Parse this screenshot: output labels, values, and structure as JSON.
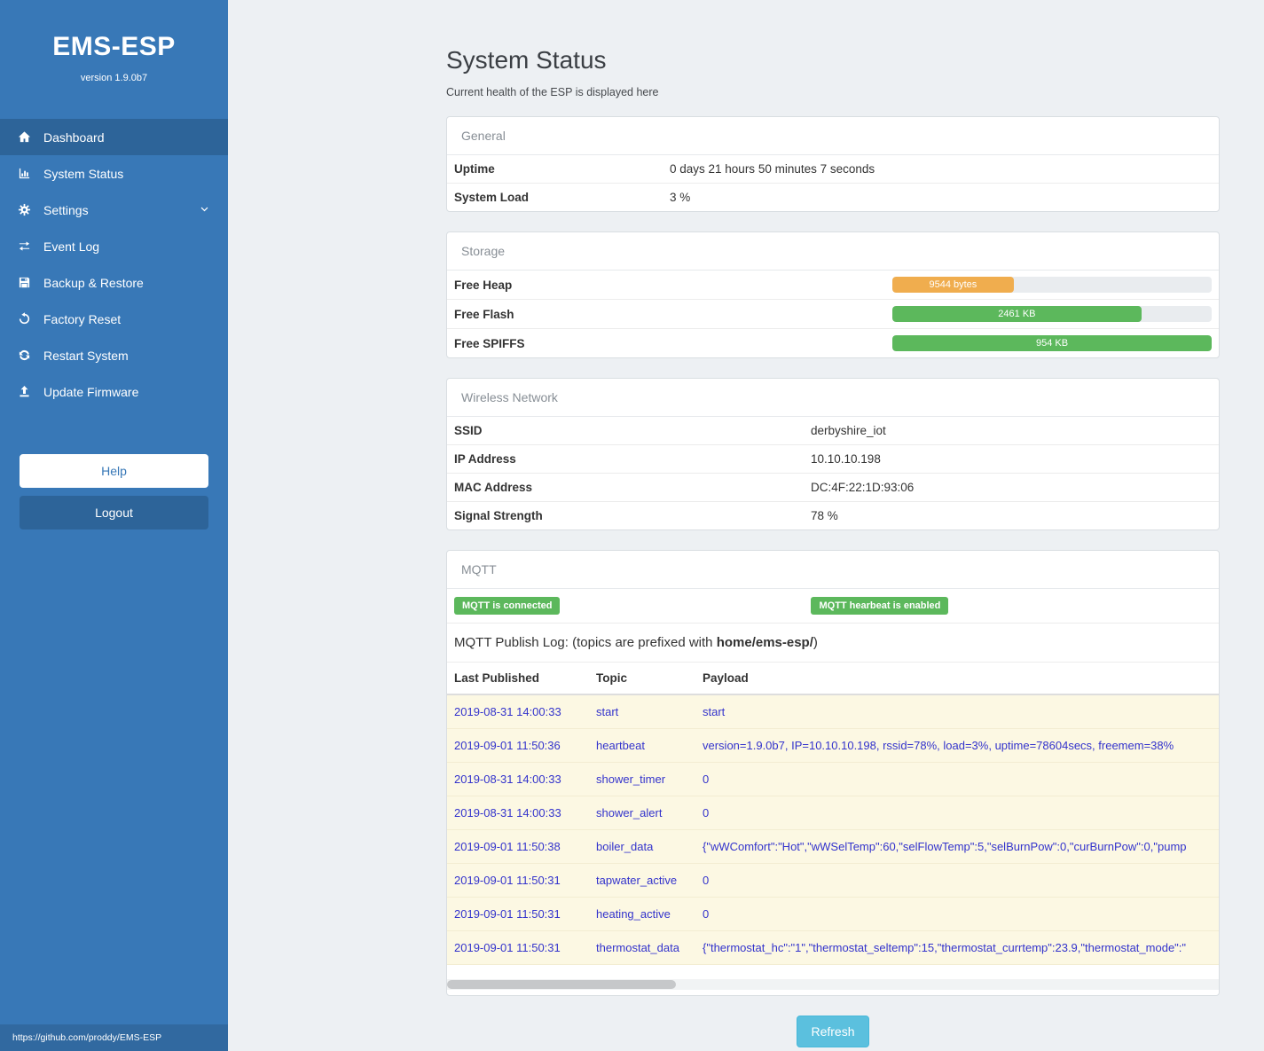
{
  "colors": {
    "sidebar": "#3878b7",
    "sidebar-active": "#2d6499",
    "success": "#5cb85c",
    "warning": "#f0ad4e",
    "info": "#5bc0de",
    "link": "#3333cc",
    "bg": "#edf0f3"
  },
  "sidebar": {
    "app_title": "EMS-ESP",
    "version": "version 1.9.0b7",
    "items": [
      {
        "label": "Dashboard",
        "icon": "home-icon",
        "active": true
      },
      {
        "label": "System Status",
        "icon": "bar-chart-icon"
      },
      {
        "label": "Settings",
        "icon": "gear-icon",
        "chevron": true
      },
      {
        "label": "Event Log",
        "icon": "exchange-icon"
      },
      {
        "label": "Backup & Restore",
        "icon": "save-icon"
      },
      {
        "label": "Factory Reset",
        "icon": "rotate-icon"
      },
      {
        "label": "Restart System",
        "icon": "refresh-icon"
      },
      {
        "label": "Update Firmware",
        "icon": "upload-icon"
      }
    ],
    "help_label": "Help",
    "logout_label": "Logout",
    "footer_link": "https://github.com/proddy/EMS-ESP"
  },
  "main": {
    "title": "System Status",
    "subtitle": "Current health of the ESP is displayed here",
    "general": {
      "header": "General",
      "rows": [
        {
          "label": "Uptime",
          "value": "0 days 21 hours 50 minutes 7 seconds"
        },
        {
          "label": "System Load",
          "value": "3 %"
        }
      ]
    },
    "storage": {
      "header": "Storage",
      "rows": [
        {
          "label": "Free Heap",
          "bar_label": "9544 bytes",
          "percent": 38,
          "color": "#f0ad4e"
        },
        {
          "label": "Free Flash",
          "bar_label": "2461 KB",
          "percent": 78,
          "color": "#5cb85c"
        },
        {
          "label": "Free SPIFFS",
          "bar_label": "954 KB",
          "percent": 100,
          "color": "#5cb85c"
        }
      ]
    },
    "wireless": {
      "header": "Wireless Network",
      "rows": [
        {
          "label": "SSID",
          "value": "derbyshire_iot"
        },
        {
          "label": "IP Address",
          "value": "10.10.10.198"
        },
        {
          "label": "MAC Address",
          "value": "DC:4F:22:1D:93:06"
        },
        {
          "label": "Signal Strength",
          "value": "78 %"
        }
      ]
    },
    "mqtt": {
      "header": "MQTT",
      "badges": [
        "MQTT is connected",
        "MQTT hearbeat is enabled"
      ],
      "log_title_prefix": "MQTT Publish Log: (topics are prefixed with ",
      "log_title_bold": "home/ems-esp/",
      "log_title_suffix": ")",
      "table": {
        "headers": [
          "Last Published",
          "Topic",
          "Payload"
        ],
        "rows": [
          [
            "2019-08-31 14:00:33",
            "start",
            "start"
          ],
          [
            "2019-09-01 11:50:36",
            "heartbeat",
            "version=1.9.0b7, IP=10.10.10.198, rssid=78%, load=3%, uptime=78604secs, freemem=38%"
          ],
          [
            "2019-08-31 14:00:33",
            "shower_timer",
            "0"
          ],
          [
            "2019-08-31 14:00:33",
            "shower_alert",
            "0"
          ],
          [
            "2019-09-01 11:50:38",
            "boiler_data",
            "{\"wWComfort\":\"Hot\",\"wWSelTemp\":60,\"selFlowTemp\":5,\"selBurnPow\":0,\"curBurnPow\":0,\"pump"
          ],
          [
            "2019-09-01 11:50:31",
            "tapwater_active",
            "0"
          ],
          [
            "2019-09-01 11:50:31",
            "heating_active",
            "0"
          ],
          [
            "2019-09-01 11:50:31",
            "thermostat_data",
            "{\"thermostat_hc\":\"1\",\"thermostat_seltemp\":15,\"thermostat_currtemp\":23.9,\"thermostat_mode\":\""
          ]
        ]
      }
    },
    "refresh_label": "Refresh"
  }
}
